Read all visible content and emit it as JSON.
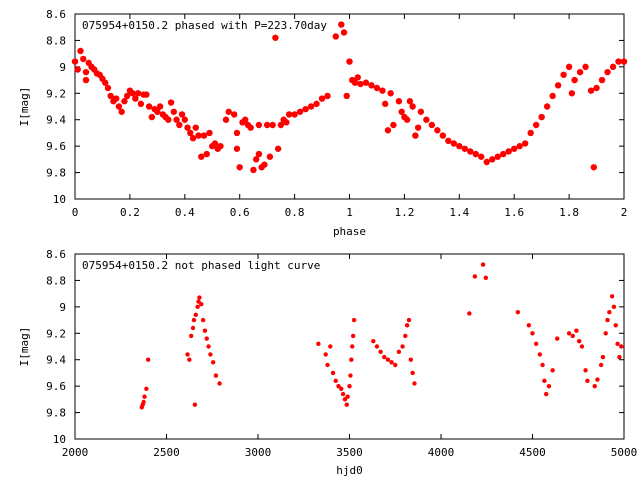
{
  "chart_data": [
    {
      "type": "scatter",
      "title": "075954+0150.2 phased with P=223.70day",
      "xlabel": "phase",
      "ylabel": "I[mag]",
      "xlim": [
        0,
        2
      ],
      "ylim": [
        8.6,
        10
      ],
      "y_inverted": true,
      "xticks": [
        "0",
        "0.2",
        "0.4",
        "0.6",
        "0.8",
        "1",
        "1.2",
        "1.4",
        "1.6",
        "1.8",
        "2"
      ],
      "yticks": [
        "8.6",
        "8.8",
        "9",
        "9.2",
        "9.4",
        "9.6",
        "9.8",
        "10"
      ],
      "marker_color": "#ff0000",
      "grid": false,
      "series": [
        {
          "points": [
            [
              0.0,
              8.96
            ],
            [
              0.01,
              9.02
            ],
            [
              0.02,
              8.88
            ],
            [
              0.03,
              8.94
            ],
            [
              0.04,
              9.04
            ],
            [
              0.04,
              9.1
            ],
            [
              0.05,
              8.97
            ],
            [
              0.06,
              9.0
            ],
            [
              0.07,
              9.02
            ],
            [
              0.08,
              9.05
            ],
            [
              0.09,
              9.06
            ],
            [
              0.1,
              9.09
            ],
            [
              0.11,
              9.12
            ],
            [
              0.12,
              9.16
            ],
            [
              0.13,
              9.22
            ],
            [
              0.14,
              9.26
            ],
            [
              0.15,
              9.24
            ],
            [
              0.16,
              9.3
            ],
            [
              0.17,
              9.34
            ],
            [
              0.18,
              9.26
            ],
            [
              0.19,
              9.22
            ],
            [
              0.2,
              9.18
            ],
            [
              0.21,
              9.2
            ],
            [
              0.22,
              9.24
            ],
            [
              0.23,
              9.2
            ],
            [
              0.24,
              9.28
            ],
            [
              0.25,
              9.21
            ],
            [
              0.26,
              9.21
            ],
            [
              0.27,
              9.3
            ],
            [
              0.28,
              9.38
            ],
            [
              0.29,
              9.32
            ],
            [
              0.3,
              9.34
            ],
            [
              0.31,
              9.3
            ],
            [
              0.32,
              9.36
            ],
            [
              0.33,
              9.38
            ],
            [
              0.34,
              9.4
            ],
            [
              0.35,
              9.27
            ],
            [
              0.36,
              9.34
            ],
            [
              0.37,
              9.4
            ],
            [
              0.38,
              9.44
            ],
            [
              0.39,
              9.36
            ],
            [
              0.4,
              9.4
            ],
            [
              0.41,
              9.46
            ],
            [
              0.42,
              9.5
            ],
            [
              0.43,
              9.54
            ],
            [
              0.44,
              9.46
            ],
            [
              0.45,
              9.52
            ],
            [
              0.46,
              9.68
            ],
            [
              0.47,
              9.52
            ],
            [
              0.48,
              9.66
            ],
            [
              0.49,
              9.5
            ],
            [
              0.5,
              9.6
            ],
            [
              0.51,
              9.58
            ],
            [
              0.52,
              9.62
            ],
            [
              0.53,
              9.6
            ],
            [
              0.55,
              9.4
            ],
            [
              0.56,
              9.34
            ],
            [
              0.58,
              9.36
            ],
            [
              0.59,
              9.5
            ],
            [
              0.59,
              9.62
            ],
            [
              0.6,
              9.76
            ],
            [
              0.61,
              9.42
            ],
            [
              0.62,
              9.4
            ],
            [
              0.63,
              9.44
            ],
            [
              0.64,
              9.46
            ],
            [
              0.65,
              9.78
            ],
            [
              0.66,
              9.7
            ],
            [
              0.67,
              9.66
            ],
            [
              0.67,
              9.44
            ],
            [
              0.68,
              9.76
            ],
            [
              0.69,
              9.74
            ],
            [
              0.7,
              9.44
            ],
            [
              0.71,
              9.68
            ],
            [
              0.72,
              9.44
            ],
            [
              0.73,
              8.78
            ],
            [
              0.74,
              9.62
            ],
            [
              0.75,
              9.44
            ],
            [
              0.76,
              9.4
            ],
            [
              0.77,
              9.42
            ],
            [
              0.78,
              9.36
            ],
            [
              0.8,
              9.36
            ],
            [
              0.82,
              9.34
            ],
            [
              0.84,
              9.32
            ],
            [
              0.86,
              9.3
            ],
            [
              0.88,
              9.28
            ],
            [
              0.9,
              9.24
            ],
            [
              0.92,
              9.22
            ],
            [
              0.95,
              8.77
            ],
            [
              0.97,
              8.68
            ],
            [
              0.98,
              8.74
            ],
            [
              0.99,
              9.22
            ],
            [
              1.0,
              8.96
            ],
            [
              1.01,
              9.1
            ],
            [
              1.02,
              9.12
            ],
            [
              1.03,
              9.08
            ],
            [
              1.04,
              9.13
            ],
            [
              1.06,
              9.12
            ],
            [
              1.08,
              9.14
            ],
            [
              1.1,
              9.16
            ],
            [
              1.12,
              9.18
            ],
            [
              1.13,
              9.28
            ],
            [
              1.14,
              9.48
            ],
            [
              1.15,
              9.2
            ],
            [
              1.16,
              9.44
            ],
            [
              1.18,
              9.26
            ],
            [
              1.19,
              9.34
            ],
            [
              1.2,
              9.38
            ],
            [
              1.21,
              9.4
            ],
            [
              1.22,
              9.26
            ],
            [
              1.23,
              9.3
            ],
            [
              1.24,
              9.52
            ],
            [
              1.25,
              9.46
            ],
            [
              1.26,
              9.34
            ],
            [
              1.28,
              9.4
            ],
            [
              1.3,
              9.44
            ],
            [
              1.32,
              9.48
            ],
            [
              1.34,
              9.52
            ],
            [
              1.36,
              9.56
            ],
            [
              1.38,
              9.58
            ],
            [
              1.4,
              9.6
            ],
            [
              1.42,
              9.62
            ],
            [
              1.44,
              9.64
            ],
            [
              1.46,
              9.66
            ],
            [
              1.48,
              9.68
            ],
            [
              1.5,
              9.72
            ],
            [
              1.52,
              9.7
            ],
            [
              1.54,
              9.68
            ],
            [
              1.56,
              9.66
            ],
            [
              1.58,
              9.64
            ],
            [
              1.6,
              9.62
            ],
            [
              1.62,
              9.6
            ],
            [
              1.64,
              9.58
            ],
            [
              1.66,
              9.5
            ],
            [
              1.68,
              9.44
            ],
            [
              1.7,
              9.38
            ],
            [
              1.72,
              9.3
            ],
            [
              1.74,
              9.22
            ],
            [
              1.76,
              9.14
            ],
            [
              1.78,
              9.06
            ],
            [
              1.8,
              9.0
            ],
            [
              1.81,
              9.2
            ],
            [
              1.82,
              9.1
            ],
            [
              1.84,
              9.04
            ],
            [
              1.86,
              9.0
            ],
            [
              1.88,
              9.18
            ],
            [
              1.89,
              9.76
            ],
            [
              1.9,
              9.16
            ],
            [
              1.92,
              9.1
            ],
            [
              1.94,
              9.04
            ],
            [
              1.96,
              9.0
            ],
            [
              1.98,
              8.96
            ],
            [
              2.0,
              8.96
            ]
          ]
        }
      ]
    },
    {
      "type": "scatter",
      "title": "075954+0150.2 not phased light curve",
      "xlabel": "hjd0",
      "ylabel": "I[mag]",
      "xlim": [
        2000,
        5000
      ],
      "ylim": [
        8.6,
        10
      ],
      "y_inverted": true,
      "xticks": [
        "2000",
        "2500",
        "3000",
        "3500",
        "4000",
        "4500",
        "5000"
      ],
      "yticks": [
        "8.6",
        "8.8",
        "9",
        "9.2",
        "9.4",
        "9.6",
        "9.8",
        "10"
      ],
      "marker_color": "#ff0000",
      "grid": false,
      "series": [
        {
          "points": [
            [
              2365,
              9.76
            ],
            [
              2370,
              9.74
            ],
            [
              2375,
              9.72
            ],
            [
              2380,
              9.68
            ],
            [
              2390,
              9.62
            ],
            [
              2400,
              9.4
            ],
            [
              2615,
              9.36
            ],
            [
              2625,
              9.4
            ],
            [
              2635,
              9.22
            ],
            [
              2645,
              9.16
            ],
            [
              2650,
              9.1
            ],
            [
              2655,
              9.74
            ],
            [
              2660,
              9.06
            ],
            [
              2670,
              9.0
            ],
            [
              2675,
              8.96
            ],
            [
              2680,
              8.93
            ],
            [
              2690,
              8.98
            ],
            [
              2700,
              9.1
            ],
            [
              2710,
              9.18
            ],
            [
              2720,
              9.24
            ],
            [
              2730,
              9.3
            ],
            [
              2740,
              9.36
            ],
            [
              2755,
              9.42
            ],
            [
              2770,
              9.52
            ],
            [
              2790,
              9.58
            ],
            [
              3330,
              9.28
            ],
            [
              3370,
              9.36
            ],
            [
              3380,
              9.44
            ],
            [
              3395,
              9.3
            ],
            [
              3410,
              9.5
            ],
            [
              3425,
              9.56
            ],
            [
              3440,
              9.6
            ],
            [
              3455,
              9.62
            ],
            [
              3465,
              9.66
            ],
            [
              3475,
              9.7
            ],
            [
              3485,
              9.74
            ],
            [
              3490,
              9.68
            ],
            [
              3500,
              9.6
            ],
            [
              3505,
              9.52
            ],
            [
              3510,
              9.4
            ],
            [
              3515,
              9.3
            ],
            [
              3520,
              9.22
            ],
            [
              3525,
              9.1
            ],
            [
              3630,
              9.26
            ],
            [
              3650,
              9.3
            ],
            [
              3670,
              9.34
            ],
            [
              3690,
              9.38
            ],
            [
              3710,
              9.4
            ],
            [
              3730,
              9.42
            ],
            [
              3750,
              9.44
            ],
            [
              3770,
              9.34
            ],
            [
              3790,
              9.3
            ],
            [
              3805,
              9.22
            ],
            [
              3815,
              9.14
            ],
            [
              3825,
              9.1
            ],
            [
              3835,
              9.4
            ],
            [
              3845,
              9.5
            ],
            [
              3855,
              9.58
            ],
            [
              4155,
              9.05
            ],
            [
              4185,
              8.77
            ],
            [
              4230,
              8.68
            ],
            [
              4245,
              8.78
            ],
            [
              4420,
              9.04
            ],
            [
              4480,
              9.14
            ],
            [
              4500,
              9.2
            ],
            [
              4520,
              9.28
            ],
            [
              4540,
              9.36
            ],
            [
              4555,
              9.44
            ],
            [
              4565,
              9.56
            ],
            [
              4575,
              9.66
            ],
            [
              4590,
              9.6
            ],
            [
              4610,
              9.48
            ],
            [
              4635,
              9.24
            ],
            [
              4700,
              9.2
            ],
            [
              4720,
              9.22
            ],
            [
              4740,
              9.18
            ],
            [
              4755,
              9.26
            ],
            [
              4770,
              9.3
            ],
            [
              4790,
              9.48
            ],
            [
              4800,
              9.56
            ],
            [
              4840,
              9.6
            ],
            [
              4855,
              9.55
            ],
            [
              4875,
              9.44
            ],
            [
              4885,
              9.38
            ],
            [
              4900,
              9.2
            ],
            [
              4910,
              9.1
            ],
            [
              4920,
              9.04
            ],
            [
              4935,
              8.92
            ],
            [
              4945,
              9.0
            ],
            [
              4955,
              9.14
            ],
            [
              4965,
              9.28
            ],
            [
              4975,
              9.38
            ],
            [
              4985,
              9.3
            ]
          ]
        }
      ]
    }
  ]
}
